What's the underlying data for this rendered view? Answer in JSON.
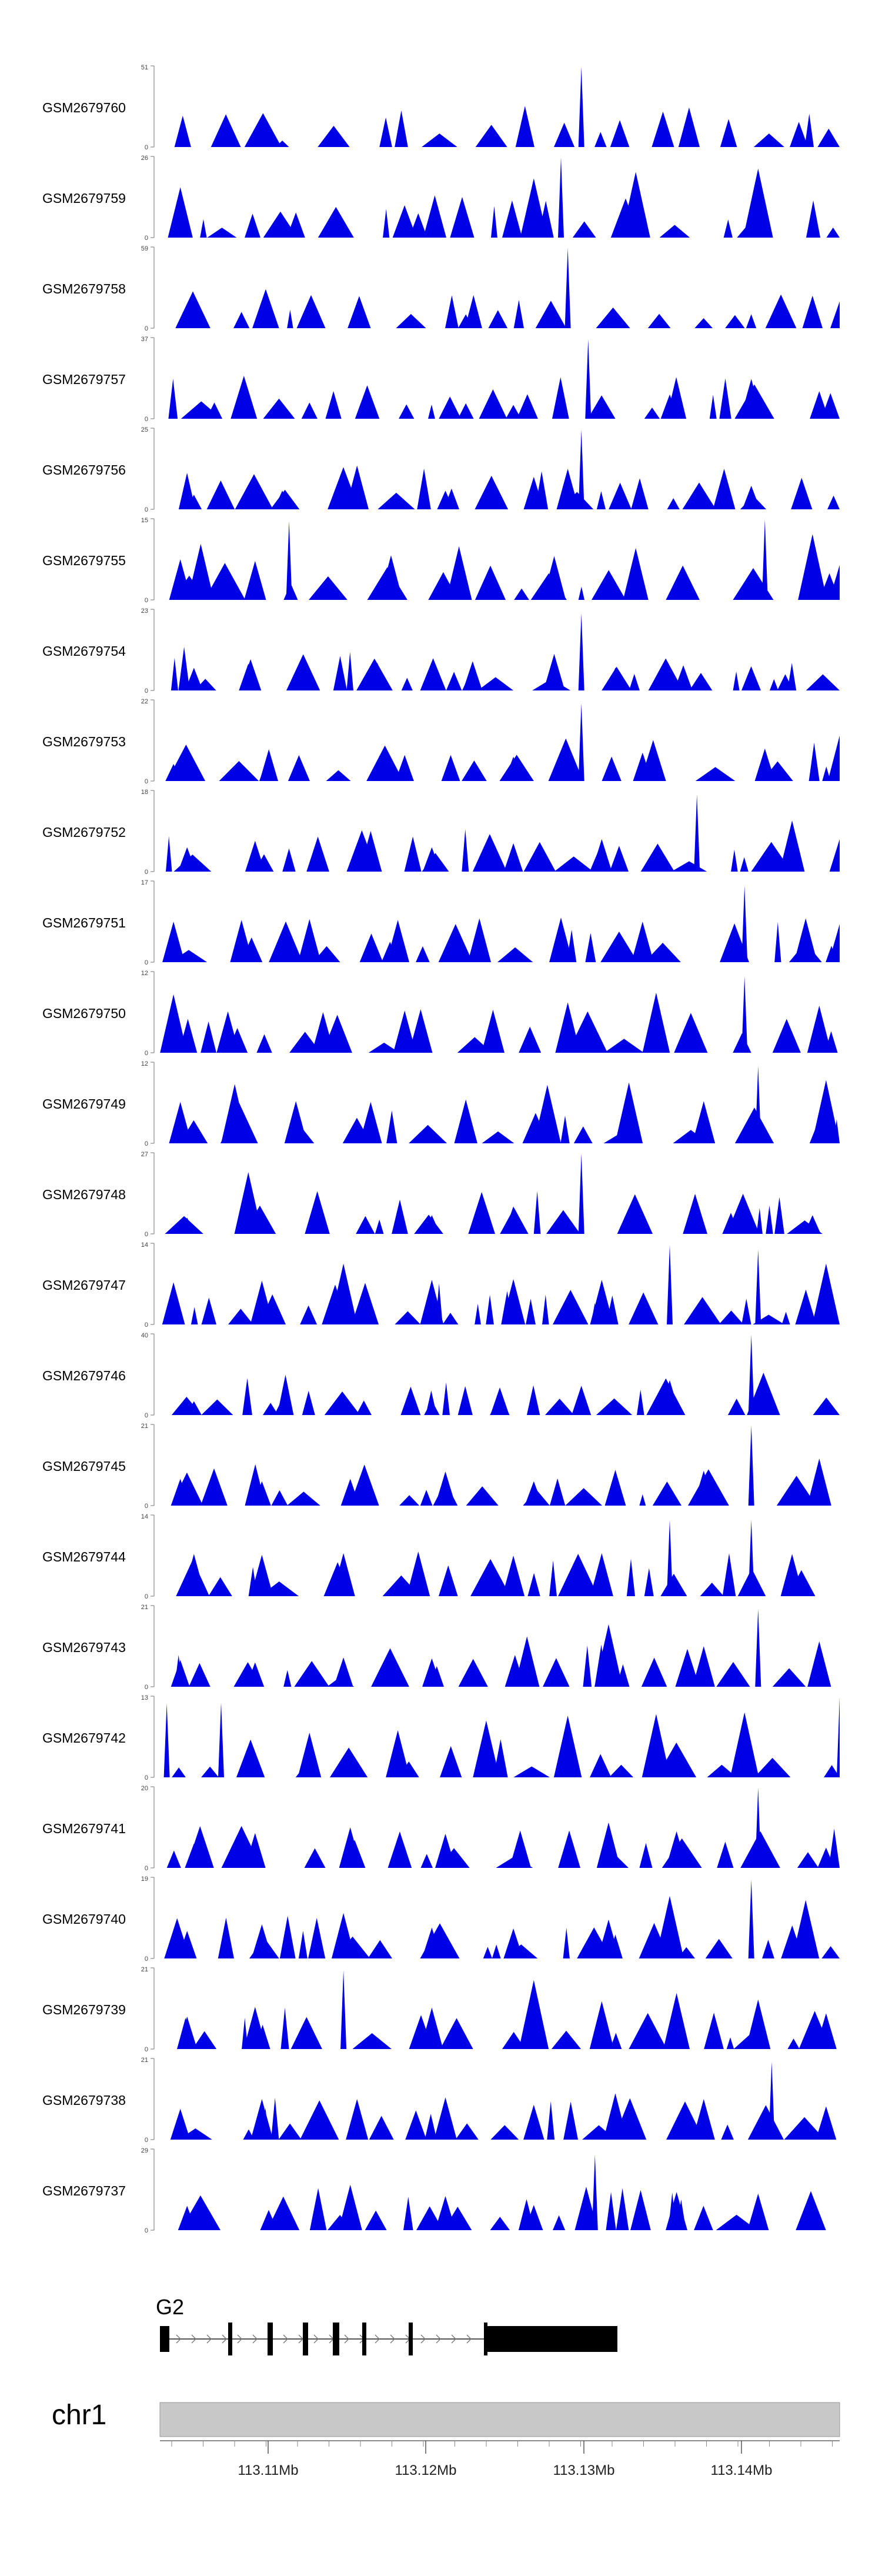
{
  "chart_data": {
    "type": "area",
    "tracks": [
      {
        "name": "GSM2679760",
        "ymax": 51,
        "peaks": [
          [
            0.18,
            0.08
          ],
          [
            0.62,
            0.99
          ],
          [
            0.94,
            0.31
          ]
        ]
      },
      {
        "name": "GSM2679759",
        "ymax": 26,
        "peaks": [
          [
            0.03,
            0.62
          ],
          [
            0.2,
            0.31
          ],
          [
            0.38,
            0.3
          ],
          [
            0.55,
            0.73
          ],
          [
            0.59,
            0.99
          ],
          [
            0.7,
            0.81
          ],
          [
            0.88,
            0.85
          ]
        ]
      },
      {
        "name": "GSM2679758",
        "ymax": 59,
        "peaks": [
          [
            0.12,
            0.2
          ],
          [
            0.45,
            0.17
          ],
          [
            0.6,
            0.99
          ],
          [
            0.96,
            0.4
          ],
          [
            1.0,
            0.33
          ]
        ]
      },
      {
        "name": "GSM2679757",
        "ymax": 37,
        "peaks": [
          [
            0.08,
            0.2
          ],
          [
            0.22,
            0.2
          ],
          [
            0.45,
            0.19
          ],
          [
            0.52,
            0.17
          ],
          [
            0.63,
            0.98
          ],
          [
            0.75,
            0.3
          ],
          [
            0.87,
            0.49
          ],
          [
            0.97,
            0.34
          ]
        ]
      },
      {
        "name": "GSM2679756",
        "ymax": 25,
        "peaks": [
          [
            0.05,
            0.18
          ],
          [
            0.18,
            0.23
          ],
          [
            0.29,
            0.54
          ],
          [
            0.42,
            0.23
          ],
          [
            0.55,
            0.4
          ],
          [
            0.6,
            0.5
          ],
          [
            0.62,
            0.98
          ],
          [
            0.83,
            0.5
          ],
          [
            0.87,
            0.29
          ]
        ]
      },
      {
        "name": "GSM2679755",
        "ymax": 15,
        "peaks": [
          [
            0.03,
            0.5
          ],
          [
            0.06,
            0.69
          ],
          [
            0.14,
            0.48
          ],
          [
            0.19,
            0.97
          ],
          [
            0.34,
            0.55
          ],
          [
            0.44,
            0.66
          ],
          [
            0.58,
            0.54
          ],
          [
            0.7,
            0.64
          ],
          [
            0.89,
            0.99
          ],
          [
            0.96,
            0.81
          ],
          [
            1.0,
            0.43
          ]
        ]
      },
      {
        "name": "GSM2679754",
        "ymax": 23,
        "peaks": [
          [
            0.05,
            0.28
          ],
          [
            0.13,
            0.33
          ],
          [
            0.21,
            0.31
          ],
          [
            0.32,
            0.34
          ],
          [
            0.46,
            0.36
          ],
          [
            0.58,
            0.45
          ],
          [
            0.62,
            0.95
          ],
          [
            0.67,
            0.28
          ],
          [
            0.77,
            0.31
          ],
          [
            0.92,
            0.2
          ]
        ]
      },
      {
        "name": "GSM2679753",
        "ymax": 22,
        "peaks": [
          [
            0.02,
            0.21
          ],
          [
            0.16,
            0.33
          ],
          [
            0.36,
            0.32
          ],
          [
            0.52,
            0.3
          ],
          [
            0.62,
            0.96
          ],
          [
            0.71,
            0.35
          ],
          [
            0.89,
            0.4
          ],
          [
            1.0,
            0.56
          ]
        ]
      },
      {
        "name": "GSM2679752",
        "ymax": 18,
        "peaks": [
          [
            0.04,
            0.3
          ],
          [
            0.14,
            0.38
          ],
          [
            0.31,
            0.5
          ],
          [
            0.4,
            0.3
          ],
          [
            0.52,
            0.35
          ],
          [
            0.65,
            0.4
          ],
          [
            0.79,
            0.95
          ],
          [
            0.93,
            0.63
          ],
          [
            1.0,
            0.4
          ]
        ]
      },
      {
        "name": "GSM2679751",
        "ymax": 17,
        "peaks": [
          [
            0.02,
            0.5
          ],
          [
            0.12,
            0.52
          ],
          [
            0.22,
            0.53
          ],
          [
            0.35,
            0.52
          ],
          [
            0.47,
            0.54
          ],
          [
            0.59,
            0.55
          ],
          [
            0.71,
            0.5
          ],
          [
            0.86,
            0.94
          ],
          [
            0.95,
            0.54
          ],
          [
            1.0,
            0.47
          ]
        ]
      },
      {
        "name": "GSM2679750",
        "ymax": 12,
        "peaks": [
          [
            0.02,
            0.72
          ],
          [
            0.1,
            0.51
          ],
          [
            0.24,
            0.5
          ],
          [
            0.36,
            0.52
          ],
          [
            0.49,
            0.53
          ],
          [
            0.6,
            0.62
          ],
          [
            0.73,
            0.74
          ],
          [
            0.86,
            0.94
          ],
          [
            0.97,
            0.58
          ]
        ]
      },
      {
        "name": "GSM2679749",
        "ymax": 12,
        "peaks": [
          [
            0.03,
            0.51
          ],
          [
            0.11,
            0.73
          ],
          [
            0.2,
            0.52
          ],
          [
            0.31,
            0.51
          ],
          [
            0.45,
            0.54
          ],
          [
            0.57,
            0.72
          ],
          [
            0.69,
            0.75
          ],
          [
            0.8,
            0.52
          ],
          [
            0.88,
            0.95
          ],
          [
            0.98,
            0.78
          ]
        ]
      },
      {
        "name": "GSM2679748",
        "ymax": 27,
        "peaks": [
          [
            0.04,
            0.2
          ],
          [
            0.13,
            0.76
          ],
          [
            0.4,
            0.23
          ],
          [
            0.52,
            0.34
          ],
          [
            0.62,
            0.99
          ],
          [
            0.7,
            0.3
          ],
          [
            0.84,
            0.26
          ],
          [
            0.96,
            0.23
          ]
        ]
      },
      {
        "name": "GSM2679747",
        "ymax": 14,
        "peaks": [
          [
            0.02,
            0.52
          ],
          [
            0.15,
            0.54
          ],
          [
            0.27,
            0.75
          ],
          [
            0.4,
            0.55
          ],
          [
            0.52,
            0.56
          ],
          [
            0.65,
            0.55
          ],
          [
            0.75,
            0.98
          ],
          [
            0.88,
            0.92
          ],
          [
            0.98,
            0.75
          ]
        ]
      },
      {
        "name": "GSM2679746",
        "ymax": 40,
        "peaks": [
          [
            0.05,
            0.17
          ],
          [
            0.18,
            0.2
          ],
          [
            0.3,
            0.18
          ],
          [
            0.4,
            0.18
          ],
          [
            0.5,
            0.34
          ],
          [
            0.62,
            0.36
          ],
          [
            0.75,
            0.43
          ],
          [
            0.87,
            0.99
          ],
          [
            0.98,
            0.2
          ]
        ]
      },
      {
        "name": "GSM2679745",
        "ymax": 21,
        "peaks": [
          [
            0.03,
            0.33
          ],
          [
            0.15,
            0.3
          ],
          [
            0.28,
            0.33
          ],
          [
            0.42,
            0.42
          ],
          [
            0.55,
            0.3
          ],
          [
            0.67,
            0.44
          ],
          [
            0.8,
            0.43
          ],
          [
            0.87,
            0.99
          ],
          [
            0.97,
            0.58
          ]
        ]
      },
      {
        "name": "GSM2679744",
        "ymax": 14,
        "peaks": [
          [
            0.05,
            0.52
          ],
          [
            0.15,
            0.51
          ],
          [
            0.27,
            0.53
          ],
          [
            0.38,
            0.55
          ],
          [
            0.52,
            0.5
          ],
          [
            0.65,
            0.53
          ],
          [
            0.75,
            0.94
          ],
          [
            0.87,
            0.94
          ],
          [
            0.93,
            0.52
          ]
        ]
      },
      {
        "name": "GSM2679743",
        "ymax": 21,
        "peaks": [
          [
            0.03,
            0.33
          ],
          [
            0.14,
            0.3
          ],
          [
            0.27,
            0.36
          ],
          [
            0.4,
            0.35
          ],
          [
            0.54,
            0.62
          ],
          [
            0.66,
            0.77
          ],
          [
            0.8,
            0.5
          ],
          [
            0.88,
            0.96
          ],
          [
            0.97,
            0.56
          ]
        ]
      },
      {
        "name": "GSM2679742",
        "ymax": 13,
        "peaks": [
          [
            0.01,
            0.91
          ],
          [
            0.09,
            0.92
          ],
          [
            0.22,
            0.55
          ],
          [
            0.35,
            0.58
          ],
          [
            0.48,
            0.7
          ],
          [
            0.6,
            0.76
          ],
          [
            0.73,
            0.78
          ],
          [
            0.86,
            0.8
          ],
          [
            1.0,
            0.99
          ]
        ]
      },
      {
        "name": "GSM2679741",
        "ymax": 20,
        "peaks": [
          [
            0.05,
            0.3
          ],
          [
            0.14,
            0.43
          ],
          [
            0.28,
            0.5
          ],
          [
            0.42,
            0.42
          ],
          [
            0.53,
            0.46
          ],
          [
            0.66,
            0.56
          ],
          [
            0.76,
            0.45
          ],
          [
            0.88,
            0.99
          ],
          [
            0.98,
            0.25
          ]
        ]
      },
      {
        "name": "GSM2679740",
        "ymax": 19,
        "peaks": [
          [
            0.04,
            0.34
          ],
          [
            0.15,
            0.42
          ],
          [
            0.27,
            0.56
          ],
          [
            0.4,
            0.38
          ],
          [
            0.52,
            0.37
          ],
          [
            0.66,
            0.48
          ],
          [
            0.75,
            0.77
          ],
          [
            0.87,
            0.97
          ],
          [
            0.95,
            0.72
          ]
        ]
      },
      {
        "name": "GSM2679739",
        "ymax": 21,
        "peaks": [
          [
            0.04,
            0.4
          ],
          [
            0.14,
            0.52
          ],
          [
            0.27,
            0.97
          ],
          [
            0.4,
            0.51
          ],
          [
            0.55,
            0.85
          ],
          [
            0.65,
            0.59
          ],
          [
            0.76,
            0.69
          ],
          [
            0.88,
            0.61
          ],
          [
            0.98,
            0.44
          ]
        ]
      },
      {
        "name": "GSM2679738",
        "ymax": 21,
        "peaks": [
          [
            0.03,
            0.38
          ],
          [
            0.15,
            0.5
          ],
          [
            0.29,
            0.5
          ],
          [
            0.42,
            0.52
          ],
          [
            0.55,
            0.43
          ],
          [
            0.67,
            0.57
          ],
          [
            0.8,
            0.5
          ],
          [
            0.9,
            0.96
          ],
          [
            0.98,
            0.41
          ]
        ]
      },
      {
        "name": "GSM2679737",
        "ymax": 29,
        "peaks": [
          [
            0.04,
            0.3
          ],
          [
            0.16,
            0.25
          ],
          [
            0.28,
            0.56
          ],
          [
            0.42,
            0.42
          ],
          [
            0.55,
            0.31
          ],
          [
            0.64,
            0.93
          ],
          [
            0.76,
            0.47
          ],
          [
            0.88,
            0.45
          ],
          [
            0.96,
            0.14
          ]
        ]
      }
    ],
    "ymin": 0,
    "gene": {
      "label": "G2"
    },
    "chromosome": {
      "label": "chr1"
    },
    "axis": {
      "unit": "Mb",
      "tick_labels": [
        "113.11Mb",
        "113.12Mb",
        "113.13Mb",
        "113.14Mb"
      ]
    }
  },
  "colors": {
    "track_fill": "#0000e6",
    "gene_fill": "#000000",
    "ideogram_fill": "#c8c8c8",
    "axis": "#444444"
  }
}
